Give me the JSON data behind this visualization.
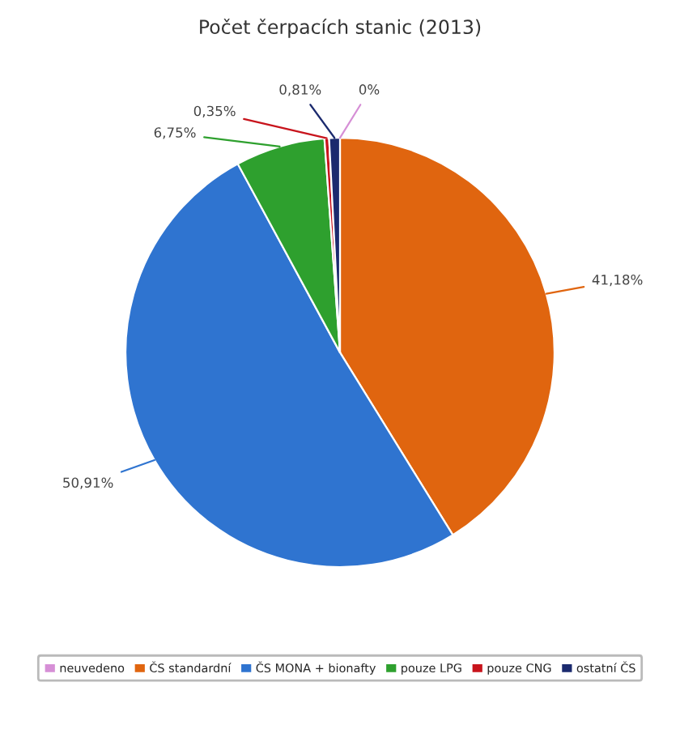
{
  "chart_data": {
    "type": "pie",
    "title": "Počet čerpacích stanic (2013)",
    "categories": [
      "neuvedeno",
      "ČS standardní",
      "ČS MONA + bionafty",
      "pouze LPG",
      "pouze CNG",
      "ostatní ČS"
    ],
    "values": [
      0,
      41.18,
      50.91,
      6.75,
      0.35,
      0.81
    ],
    "value_labels": [
      "0%",
      "41,18%",
      "50,91%",
      "6,75%",
      "0,35%",
      "0,81%"
    ],
    "colors": [
      "#d68fd6",
      "#e0650f",
      "#2f74d0",
      "#2ea02e",
      "#c8141c",
      "#1b2a6e"
    ],
    "legend": "bottom"
  }
}
